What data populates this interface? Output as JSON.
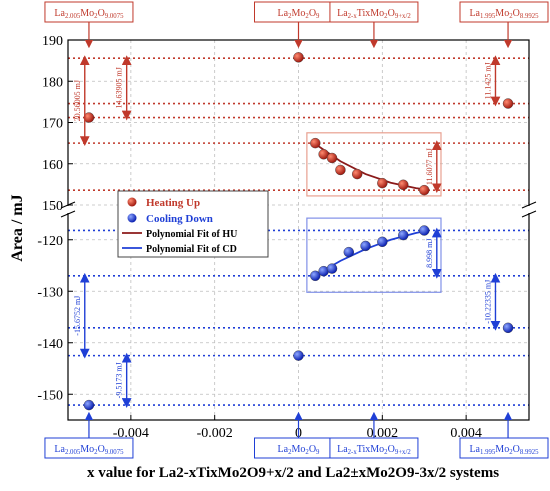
{
  "chart_data": {
    "type": "scatter",
    "xlabel": "x value for La2-xTixMo2O9+x/2 and La2±xMo2O9-3x/2 systems",
    "ylabel": "Area / mJ",
    "xlim": [
      -0.0055,
      0.0055
    ],
    "x_ticks": [
      "-0.004",
      "-0.002",
      "0",
      "0.002",
      "0.004"
    ],
    "upper_axis": {
      "ylim": [
        150,
        190
      ],
      "ticks": [
        "150",
        "160",
        "170",
        "180",
        "190"
      ]
    },
    "lower_axis": {
      "ylim": [
        -155,
        -115
      ],
      "ticks": [
        "-150",
        "-140",
        "-130",
        "-120"
      ]
    },
    "grid": true,
    "legend": {
      "placement": "left-center",
      "entries": [
        "Heating Up",
        "Cooling Down",
        "Polynomial Fit of HU",
        "Polynomial Fit of CD"
      ]
    },
    "series": [
      {
        "name": "Heating Up",
        "color": "#c0392b",
        "points": [
          {
            "x": -0.005,
            "y": 171.2
          },
          {
            "x": 0.0,
            "y": 185.8
          },
          {
            "x": 0.0004,
            "y": 165.0
          },
          {
            "x": 0.0006,
            "y": 162.3
          },
          {
            "x": 0.0008,
            "y": 161.4
          },
          {
            "x": 0.001,
            "y": 158.5
          },
          {
            "x": 0.0014,
            "y": 157.5
          },
          {
            "x": 0.002,
            "y": 155.3
          },
          {
            "x": 0.0025,
            "y": 154.9
          },
          {
            "x": 0.003,
            "y": 153.6
          },
          {
            "x": 0.005,
            "y": 174.6
          }
        ]
      },
      {
        "name": "Cooling Down",
        "color": "#1f3fd6",
        "points": [
          {
            "x": -0.005,
            "y": -152.1
          },
          {
            "x": 0.0,
            "y": -142.5
          },
          {
            "x": 0.0004,
            "y": -127.0
          },
          {
            "x": 0.0006,
            "y": -126.1
          },
          {
            "x": 0.0008,
            "y": -125.6
          },
          {
            "x": 0.0012,
            "y": -122.4
          },
          {
            "x": 0.0016,
            "y": -121.2
          },
          {
            "x": 0.002,
            "y": -120.4
          },
          {
            "x": 0.0025,
            "y": -119.1
          },
          {
            "x": 0.003,
            "y": -118.2
          },
          {
            "x": 0.005,
            "y": -137.1
          }
        ]
      }
    ],
    "fits": [
      {
        "name": "Polynomial Fit of HU",
        "color": "#8b1a1a",
        "x": [
          0.0004,
          0.001,
          0.0016,
          0.0022,
          0.0028,
          0.0031
        ],
        "y": [
          164.8,
          160.6,
          157.5,
          155.4,
          154.1,
          153.7
        ]
      },
      {
        "name": "Polynomial Fit of CD",
        "color": "#1f3fd6",
        "x": [
          0.0004,
          0.001,
          0.0016,
          0.0022,
          0.0028,
          0.0031
        ],
        "y": [
          -126.9,
          -124.1,
          -121.8,
          -120.0,
          -118.7,
          -118.2
        ]
      }
    ],
    "hlines": [
      {
        "y": 185.6,
        "color": "#c0392b"
      },
      {
        "y": 174.6,
        "color": "#c0392b"
      },
      {
        "y": 171.2,
        "color": "#c0392b"
      },
      {
        "y": 165.0,
        "color": "#c0392b"
      },
      {
        "y": 153.6,
        "color": "#c0392b"
      },
      {
        "y": -118.2,
        "color": "#1f3fd6"
      },
      {
        "y": -127.0,
        "color": "#1f3fd6"
      },
      {
        "y": -137.1,
        "color": "#1f3fd6"
      },
      {
        "y": -142.5,
        "color": "#1f3fd6"
      },
      {
        "y": -152.1,
        "color": "#1f3fd6"
      }
    ],
    "dimensions": [
      {
        "text": "20.56005 mJ",
        "x": -0.0051,
        "y1": 185.6,
        "y2": 165.0,
        "color": "#c0392b"
      },
      {
        "text": "14.63905 mJ",
        "x": -0.0041,
        "y1": 185.6,
        "y2": 171.2,
        "color": "#c0392b"
      },
      {
        "text": "11.1425 mJ",
        "x": 0.0047,
        "y1": 185.6,
        "y2": 174.6,
        "color": "#c0392b"
      },
      {
        "text": "11.6077 mJ",
        "x": 0.0033,
        "y1": 165.0,
        "y2": 153.6,
        "color": "#c0392b"
      },
      {
        "text": "8.998 mJ",
        "x": 0.0033,
        "y1": -118.2,
        "y2": -127.0,
        "color": "#1f3fd6"
      },
      {
        "text": "-10.22335 mJ",
        "x": 0.0047,
        "y1": -127.0,
        "y2": -137.1,
        "color": "#1f3fd6"
      },
      {
        "text": "-15.6752 mJ",
        "x": -0.0051,
        "y1": -127.0,
        "y2": -142.5,
        "color": "#1f3fd6"
      },
      {
        "text": "-9.5173 mJ",
        "x": -0.0041,
        "y1": -142.5,
        "y2": -152.1,
        "color": "#1f3fd6"
      }
    ],
    "sample_labels": [
      {
        "text": "La2.005Mo2O9.0075",
        "position": "top",
        "x": -0.005,
        "color": "#c0392b"
      },
      {
        "text": "La2Mo2O9",
        "position": "top",
        "x": 0.0,
        "color": "#c0392b"
      },
      {
        "text": "La2-xTixMo2O9+x/2",
        "position": "top",
        "x": 0.0018,
        "color": "#c0392b"
      },
      {
        "text": "La1.995Mo2O8.9925",
        "position": "top",
        "x": 0.005,
        "color": "#c0392b"
      },
      {
        "text": "La2.005Mo2O9.0075",
        "position": "bottom",
        "x": -0.005,
        "color": "#1f3fd6"
      },
      {
        "text": "La2Mo2O9",
        "position": "bottom",
        "x": 0.0,
        "color": "#1f3fd6"
      },
      {
        "text": "La2-xTixMo2O9+x/2",
        "position": "bottom",
        "x": 0.0018,
        "color": "#1f3fd6"
      },
      {
        "text": "La1.995Mo2O8.9925",
        "position": "bottom",
        "x": 0.005,
        "color": "#1f3fd6"
      }
    ]
  }
}
